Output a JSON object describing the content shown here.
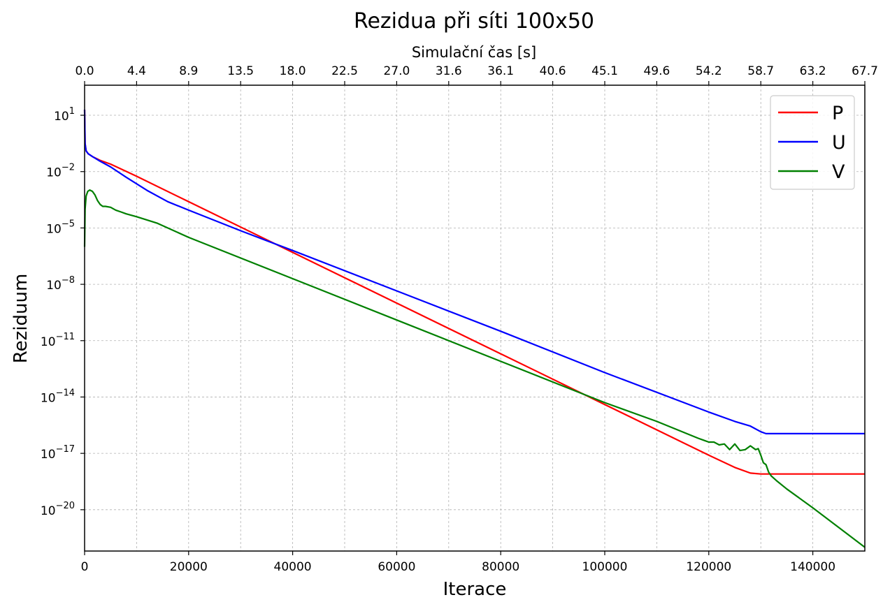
{
  "chart_data": {
    "type": "line",
    "title": "Rezidua při síti 100x50",
    "xlabel": "Iterace",
    "ylabel": "Reziduum",
    "top_xlabel": "Simulační čas [s]",
    "xlim": [
      0,
      150000
    ],
    "ylim_log10": [
      -22.2,
      2.6
    ],
    "yscale": "log",
    "grid": true,
    "legend_position": "top-right",
    "x_ticks": [
      "0",
      "20000",
      "40000",
      "60000",
      "80000",
      "100000",
      "120000",
      "140000"
    ],
    "x_tick_values": [
      0,
      20000,
      40000,
      60000,
      80000,
      100000,
      120000,
      140000
    ],
    "y_ticks": [
      {
        "exp": 1,
        "base": "10",
        "sup": "1"
      },
      {
        "exp": -2,
        "base": "10",
        "sup": "−2"
      },
      {
        "exp": -5,
        "base": "10",
        "sup": "−5"
      },
      {
        "exp": -8,
        "base": "10",
        "sup": "−8"
      },
      {
        "exp": -11,
        "base": "10",
        "sup": "−11"
      },
      {
        "exp": -14,
        "base": "10",
        "sup": "−14"
      },
      {
        "exp": -17,
        "base": "10",
        "sup": "−17"
      },
      {
        "exp": -20,
        "base": "10",
        "sup": "−20"
      }
    ],
    "top_ticks": [
      "0.0",
      "4.4",
      "8.9",
      "13.5",
      "18.0",
      "22.5",
      "27.0",
      "31.6",
      "36.1",
      "40.6",
      "45.1",
      "49.6",
      "54.2",
      "58.7",
      "63.2",
      "67.7"
    ],
    "top_tick_iterations": [
      0,
      10000,
      20000,
      30000,
      40000,
      50000,
      60000,
      70000,
      80000,
      90000,
      100000,
      110000,
      120000,
      130000,
      140000,
      150000
    ],
    "series": [
      {
        "name": "P",
        "color": "#ff0000",
        "x": [
          0,
          100,
          300,
          700,
          1500,
          3000,
          5000,
          10000,
          20000,
          40000,
          60000,
          80000,
          100000,
          120000,
          125000,
          128000,
          130000,
          135000,
          150000
        ],
        "log10_y": [
          1.3,
          -0.5,
          -0.9,
          -1.05,
          -1.2,
          -1.4,
          -1.6,
          -2.25,
          -3.6,
          -6.3,
          -9.0,
          -11.7,
          -14.4,
          -17.1,
          -17.75,
          -18.05,
          -18.1,
          -18.1,
          -18.1
        ]
      },
      {
        "name": "U",
        "color": "#0000ff",
        "x": [
          0,
          100,
          300,
          700,
          1500,
          3000,
          5000,
          8000,
          12000,
          16000,
          20000,
          30000,
          40000,
          60000,
          80000,
          100000,
          120000,
          125000,
          128000,
          130000,
          131000,
          135000,
          150000
        ],
        "log10_y": [
          1.3,
          -0.5,
          -0.9,
          -1.05,
          -1.2,
          -1.45,
          -1.75,
          -2.3,
          -3.0,
          -3.6,
          -4.05,
          -5.15,
          -6.2,
          -8.35,
          -10.5,
          -12.7,
          -14.8,
          -15.3,
          -15.55,
          -15.85,
          -15.95,
          -15.95,
          -15.95
        ]
      },
      {
        "name": "V",
        "color": "#008000",
        "x": [
          0,
          100,
          300,
          600,
          1000,
          1500,
          2000,
          2500,
          3000,
          3500,
          4000,
          5000,
          6000,
          7000,
          8000,
          10000,
          14000,
          20000,
          40000,
          60000,
          80000,
          100000,
          110000,
          118000,
          119000,
          120000,
          121000,
          122000,
          123000,
          124000,
          125000,
          126000,
          127000,
          128000,
          129000,
          129500,
          130000,
          130500,
          131000,
          131500,
          132000,
          133000,
          135000,
          140000,
          150000
        ],
        "log10_y": [
          -6.0,
          -4.0,
          -3.3,
          -3.05,
          -2.98,
          -3.05,
          -3.25,
          -3.55,
          -3.75,
          -3.85,
          -3.85,
          -3.9,
          -4.05,
          -4.15,
          -4.25,
          -4.4,
          -4.75,
          -5.5,
          -7.7,
          -9.9,
          -12.1,
          -14.3,
          -15.3,
          -16.2,
          -16.3,
          -16.4,
          -16.4,
          -16.55,
          -16.5,
          -16.8,
          -16.5,
          -16.85,
          -16.8,
          -16.6,
          -16.8,
          -16.75,
          -17.1,
          -17.5,
          -17.6,
          -18.0,
          -18.2,
          -18.45,
          -18.9,
          -19.9,
          -22.0
        ]
      }
    ]
  }
}
